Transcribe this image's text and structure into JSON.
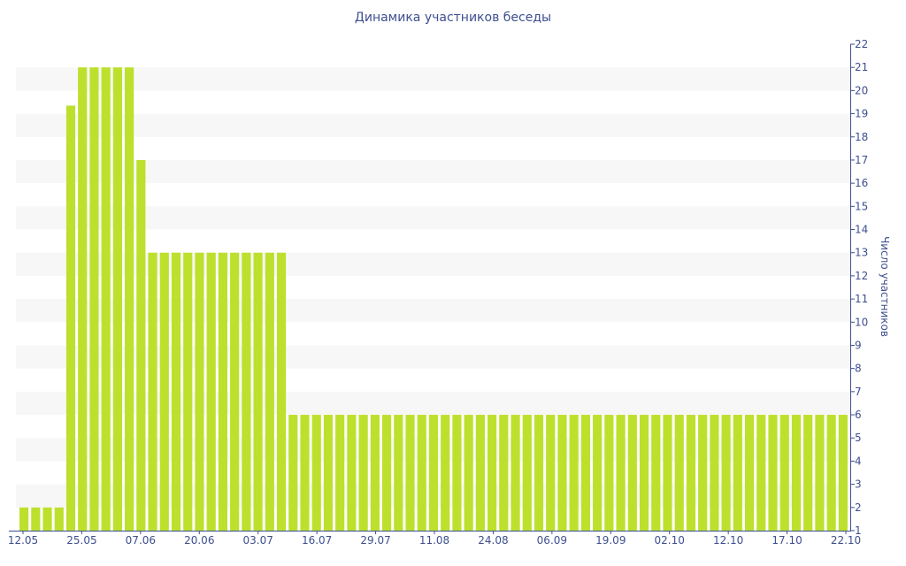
{
  "chart_data": {
    "type": "bar",
    "title": "Динамика участников беседы",
    "xlabel": "",
    "ylabel": "Число участников",
    "ylim": [
      1,
      22
    ],
    "yticks": [
      1,
      2,
      3,
      4,
      5,
      6,
      7,
      8,
      9,
      10,
      11,
      12,
      13,
      14,
      15,
      16,
      17,
      18,
      19,
      20,
      21,
      22
    ],
    "x_tick_labels": [
      "12.05",
      "25.05",
      "07.06",
      "20.06",
      "03.07",
      "16.07",
      "29.07",
      "11.08",
      "24.08",
      "06.09",
      "19.09",
      "02.10",
      "12.10",
      "17.10",
      "22.10"
    ],
    "values": [
      2,
      2,
      2,
      2,
      19.35,
      21,
      21,
      21,
      21,
      21,
      17,
      13,
      13,
      13,
      13,
      13,
      13,
      13,
      13,
      13,
      13,
      13,
      13,
      6,
      6,
      6,
      6,
      6,
      6,
      6,
      6,
      6,
      6,
      6,
      6,
      6,
      6,
      6,
      6,
      6,
      6,
      6,
      6,
      6,
      6,
      6,
      6,
      6,
      6,
      6,
      6,
      6,
      6,
      6,
      6,
      6,
      6,
      6,
      6,
      6,
      6,
      6,
      6,
      6,
      6,
      6,
      6,
      6,
      6,
      6,
      6
    ],
    "bar_color": "#bde02d",
    "stripe_color": "#f7f7f7",
    "axis_color": "#3e4f8f",
    "y_axis_side": "right",
    "grid": "horizontal bands"
  }
}
